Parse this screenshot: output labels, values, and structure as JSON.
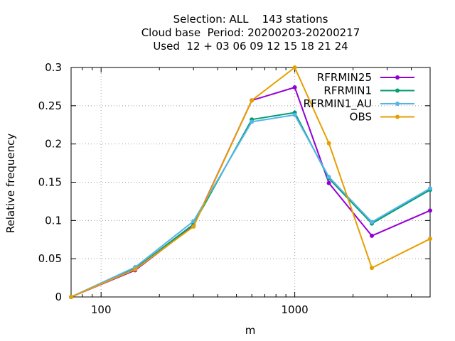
{
  "chart_data": {
    "type": "line",
    "title_lines": [
      "Selection: ALL    143 stations",
      "Cloud base  Period: 20200203-20200217",
      "Used  12 + 03 06 09 12 15 18 21 24"
    ],
    "xlabel": "m",
    "ylabel": "Relative frequency",
    "x_scale": "log",
    "xlim": [
      70,
      5000
    ],
    "ylim": [
      0,
      0.3
    ],
    "x_ticks": [
      100,
      1000
    ],
    "x_tick_labels": [
      "100",
      "1000"
    ],
    "y_ticks": [
      0,
      0.05,
      0.1,
      0.15,
      0.2,
      0.25,
      0.3
    ],
    "y_tick_labels": [
      "0",
      "0.05",
      "0.1",
      "0.15",
      "0.2",
      "0.25",
      "0.3"
    ],
    "grid": true,
    "legend_position": "top-right",
    "x": [
      70,
      150,
      300,
      600,
      1000,
      1500,
      2500,
      5000
    ],
    "series": [
      {
        "name": "RFRMIN25",
        "color": "#9400d3",
        "values": [
          0.0,
          0.035,
          0.093,
          0.257,
          0.274,
          0.149,
          0.08,
          0.113
        ]
      },
      {
        "name": "RFRMIN1",
        "color": "#009e73",
        "values": [
          0.0,
          0.037,
          0.095,
          0.232,
          0.241,
          0.155,
          0.096,
          0.14
        ]
      },
      {
        "name": "RFRMIN1_AU",
        "color": "#56b4e9",
        "values": [
          0.0,
          0.039,
          0.099,
          0.229,
          0.238,
          0.157,
          0.098,
          0.142
        ]
      },
      {
        "name": "OBS",
        "color": "#e69f00",
        "values": [
          0.0,
          0.036,
          0.092,
          0.257,
          0.3,
          0.201,
          0.038,
          0.076
        ]
      }
    ]
  }
}
